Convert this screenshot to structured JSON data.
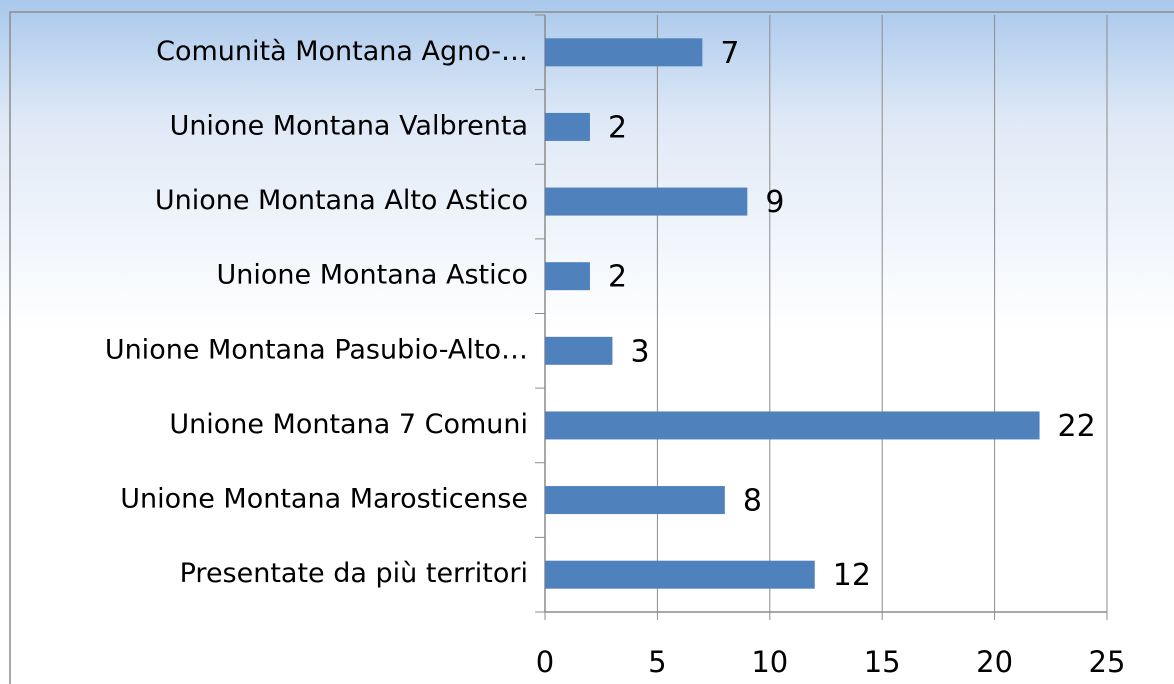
{
  "chart_data": {
    "type": "bar",
    "orientation": "horizontal",
    "categories": [
      "Comunità Montana Agno-…",
      "Unione Montana Valbrenta",
      "Unione Montana Alto Astico",
      "Unione Montana Astico",
      "Unione Montana Pasubio-Alto…",
      "Unione Montana 7 Comuni",
      "Unione Montana Marosticense",
      "Presentate da più territori"
    ],
    "values": [
      7,
      2,
      9,
      2,
      3,
      22,
      8,
      12
    ],
    "color": "#4f81bd",
    "xlim": [
      0,
      25
    ],
    "xticks": [
      0,
      5,
      10,
      15,
      20,
      25
    ],
    "grid": true
  }
}
